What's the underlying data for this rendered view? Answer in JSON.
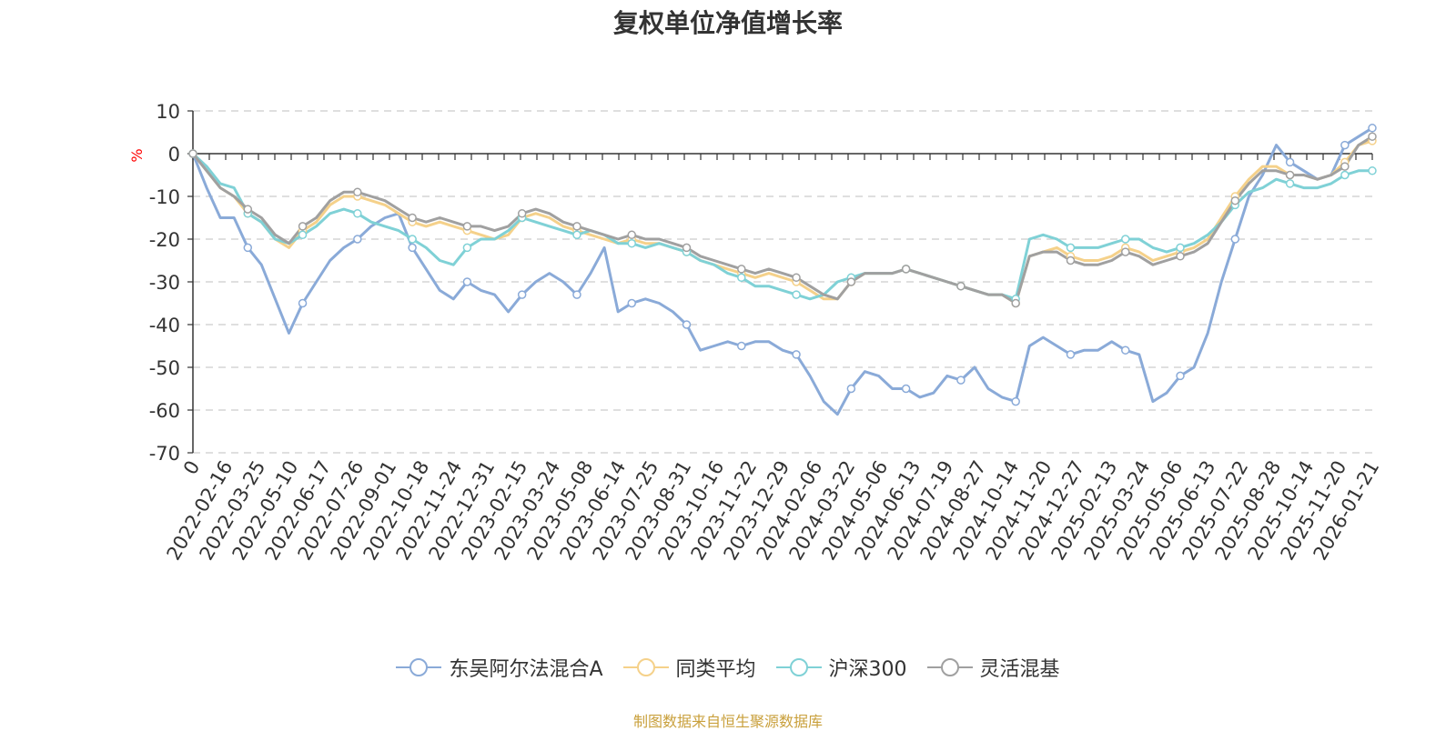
{
  "title": "复权单位净值增长率",
  "source": "制图数据来自恒生聚源数据库",
  "colors": {
    "source": "#c9a03c",
    "unit": "#ff0000",
    "grid": "#cccccc",
    "axis": "#333333"
  },
  "chart_data": {
    "type": "line",
    "ylabel": "%",
    "ylim": [
      -70,
      10
    ],
    "yticks": [
      "10",
      "0",
      "-10",
      "-20",
      "-30",
      "-40",
      "-50",
      "-60",
      "-70"
    ],
    "grid": true,
    "legend_position": "bottom",
    "x_tick_labels": [
      "0",
      "2022-02-16",
      "2022-03-25",
      "2022-05-10",
      "2022-06-17",
      "2022-07-26",
      "2022-09-01",
      "2022-10-18",
      "2022-11-24",
      "2022-12-31",
      "2023-02-15",
      "2023-03-24",
      "2023-05-08",
      "2023-06-14",
      "2023-07-25",
      "2023-08-31",
      "2023-10-16",
      "2023-11-22",
      "2023-12-29",
      "2024-02-06",
      "2024-03-22",
      "2024-05-06",
      "2024-06-13",
      "2024-07-19",
      "2024-08-27",
      "2024-10-14",
      "2024-11-20",
      "2024-12-27",
      "2025-02-13",
      "2025-03-24",
      "2025-05-06",
      "2025-06-13",
      "2025-07-22",
      "2025-08-28",
      "2025-10-14",
      "2025-11-20",
      "2026-01-21"
    ],
    "series": [
      {
        "name": "东吴阿尔法混合A",
        "color": "#8aaad8",
        "values": [
          0,
          -8,
          -15,
          -15,
          -22,
          -26,
          -34,
          -42,
          -35,
          -30,
          -25,
          -22,
          -20,
          -17,
          -15,
          -14,
          -22,
          -27,
          -32,
          -34,
          -30,
          -32,
          -33,
          -37,
          -33,
          -30,
          -28,
          -30,
          -33,
          -28,
          -22,
          -37,
          -35,
          -34,
          -35,
          -37,
          -40,
          -46,
          -45,
          -44,
          -45,
          -44,
          -44,
          -46,
          -47,
          -52,
          -58,
          -61,
          -55,
          -51,
          -52,
          -55,
          -55,
          -57,
          -56,
          -52,
          -53,
          -50,
          -55,
          -57,
          -58,
          -45,
          -43,
          -45,
          -47,
          -46,
          -46,
          -44,
          -46,
          -47,
          -58,
          -56,
          -52,
          -50,
          -42,
          -30,
          -20,
          -10,
          -5,
          2,
          -2,
          -4,
          -6,
          -5,
          2,
          4,
          6
        ]
      },
      {
        "name": "同类平均",
        "color": "#f5d18a",
        "values": [
          0,
          -4,
          -8,
          -10,
          -14,
          -16,
          -20,
          -22,
          -18,
          -16,
          -12,
          -10,
          -10,
          -11,
          -12,
          -14,
          -16,
          -17,
          -16,
          -17,
          -18,
          -19,
          -20,
          -19,
          -15,
          -14,
          -15,
          -17,
          -18,
          -19,
          -20,
          -21,
          -20,
          -21,
          -21,
          -22,
          -23,
          -25,
          -26,
          -27,
          -28,
          -29,
          -28,
          -29,
          -30,
          -32,
          -34,
          -34,
          -30,
          -28,
          -28,
          -28,
          -27,
          -28,
          -29,
          -30,
          -31,
          -32,
          -33,
          -33,
          -35,
          -24,
          -23,
          -22,
          -24,
          -25,
          -25,
          -24,
          -22,
          -23,
          -25,
          -24,
          -23,
          -22,
          -20,
          -15,
          -10,
          -6,
          -3,
          -3,
          -5,
          -5,
          -6,
          -5,
          -2,
          2,
          3
        ]
      },
      {
        "name": "沪深300",
        "color": "#7fd1d6",
        "values": [
          0,
          -3,
          -7,
          -8,
          -14,
          -16,
          -20,
          -21,
          -19,
          -17,
          -14,
          -13,
          -14,
          -16,
          -17,
          -18,
          -20,
          -22,
          -25,
          -26,
          -22,
          -20,
          -20,
          -18,
          -15,
          -16,
          -17,
          -18,
          -19,
          -18,
          -19,
          -21,
          -21,
          -22,
          -21,
          -22,
          -23,
          -25,
          -26,
          -28,
          -29,
          -31,
          -31,
          -32,
          -33,
          -34,
          -33,
          -30,
          -29,
          -28,
          -28,
          -28,
          -27,
          -28,
          -29,
          -30,
          -31,
          -32,
          -33,
          -33,
          -34,
          -20,
          -19,
          -20,
          -22,
          -22,
          -22,
          -21,
          -20,
          -20,
          -22,
          -23,
          -22,
          -21,
          -19,
          -16,
          -12,
          -9,
          -8,
          -6,
          -7,
          -8,
          -8,
          -7,
          -5,
          -4,
          -4
        ]
      },
      {
        "name": "灵活混基",
        "color": "#a0a0a0",
        "values": [
          0,
          -4,
          -8,
          -10,
          -13,
          -15,
          -19,
          -21,
          -17,
          -15,
          -11,
          -9,
          -9,
          -10,
          -11,
          -13,
          -15,
          -16,
          -15,
          -16,
          -17,
          -17,
          -18,
          -17,
          -14,
          -13,
          -14,
          -16,
          -17,
          -18,
          -19,
          -20,
          -19,
          -20,
          -20,
          -21,
          -22,
          -24,
          -25,
          -26,
          -27,
          -28,
          -27,
          -28,
          -29,
          -31,
          -33,
          -34,
          -30,
          -28,
          -28,
          -28,
          -27,
          -28,
          -29,
          -30,
          -31,
          -32,
          -33,
          -33,
          -35,
          -24,
          -23,
          -23,
          -25,
          -26,
          -26,
          -25,
          -23,
          -24,
          -26,
          -25,
          -24,
          -23,
          -21,
          -16,
          -11,
          -7,
          -4,
          -4,
          -5,
          -5,
          -6,
          -5,
          -3,
          2,
          4
        ]
      }
    ]
  }
}
